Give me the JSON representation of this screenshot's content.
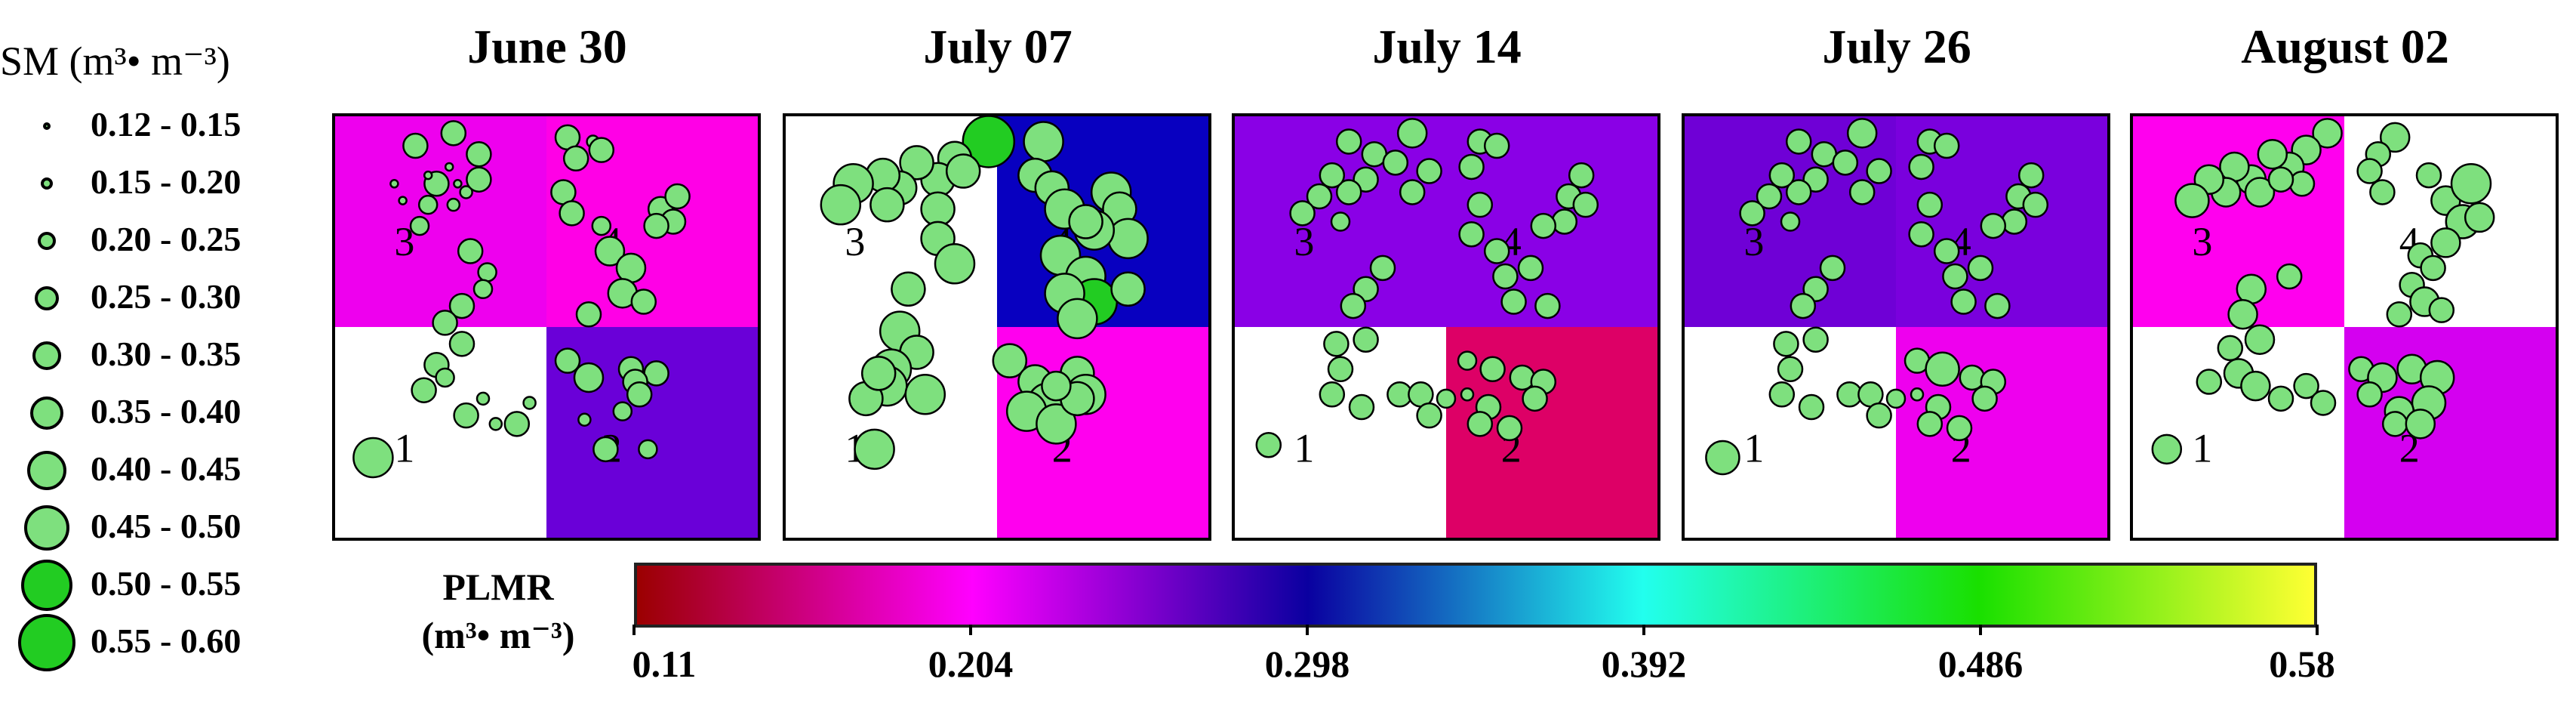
{
  "size_legend": {
    "title": "SM (m³• m⁻³)",
    "items": [
      {
        "range": "0.12 - 0.15"
      },
      {
        "range": "0.15 - 0.20"
      },
      {
        "range": "0.20 - 0.25"
      },
      {
        "range": "0.25 - 0.30"
      },
      {
        "range": "0.30 - 0.35"
      },
      {
        "range": "0.35 - 0.40"
      },
      {
        "range": "0.40 - 0.45"
      },
      {
        "range": "0.45 - 0.50"
      },
      {
        "range": "0.50 - 0.55"
      },
      {
        "range": "0.55 - 0.60"
      }
    ]
  },
  "colorbar": {
    "label_line1": "PLMR",
    "label_line2": "(m³• m⁻³)",
    "min": 0.11,
    "max": 0.58,
    "ticks": [
      "0.11",
      "0.204",
      "0.298",
      "0.392",
      "0.486",
      "0.58"
    ],
    "colors": [
      "#9b0000",
      "#ff00ff",
      "#0a00a0",
      "#22ffee",
      "#19e000",
      "#ffff33"
    ]
  },
  "quadrant_numbers": [
    "1",
    "2",
    "3",
    "4"
  ],
  "panels": [
    {
      "date": "June 30",
      "quadrants": {
        "q1": "#ffffff",
        "q2": "#6a00d8",
        "q3": "#ee00ee",
        "q4": "#ff00e6"
      },
      "points": [
        [
          0.19,
          0.07,
          0.3
        ],
        [
          0.28,
          0.04,
          0.3
        ],
        [
          0.34,
          0.09,
          0.3
        ],
        [
          0.27,
          0.12,
          0.15
        ],
        [
          0.29,
          0.16,
          0.15
        ],
        [
          0.24,
          0.16,
          0.3
        ],
        [
          0.31,
          0.18,
          0.2
        ],
        [
          0.22,
          0.21,
          0.25
        ],
        [
          0.2,
          0.26,
          0.25
        ],
        [
          0.28,
          0.21,
          0.2
        ],
        [
          0.34,
          0.15,
          0.3
        ],
        [
          0.16,
          0.2,
          0.15
        ],
        [
          0.22,
          0.14,
          0.15
        ],
        [
          0.14,
          0.16,
          0.15
        ],
        [
          0.55,
          0.05,
          0.3
        ],
        [
          0.61,
          0.06,
          0.2
        ],
        [
          0.63,
          0.08,
          0.3
        ],
        [
          0.57,
          0.1,
          0.3
        ],
        [
          0.54,
          0.18,
          0.3
        ],
        [
          0.56,
          0.23,
          0.3
        ],
        [
          0.63,
          0.26,
          0.25
        ],
        [
          0.65,
          0.32,
          0.35
        ],
        [
          0.7,
          0.36,
          0.35
        ],
        [
          0.68,
          0.42,
          0.35
        ],
        [
          0.73,
          0.44,
          0.3
        ],
        [
          0.6,
          0.47,
          0.3
        ],
        [
          0.77,
          0.22,
          0.3
        ],
        [
          0.81,
          0.19,
          0.3
        ],
        [
          0.8,
          0.25,
          0.3
        ],
        [
          0.76,
          0.26,
          0.3
        ],
        [
          0.32,
          0.32,
          0.3
        ],
        [
          0.36,
          0.37,
          0.25
        ],
        [
          0.35,
          0.41,
          0.25
        ],
        [
          0.3,
          0.45,
          0.3
        ],
        [
          0.26,
          0.49,
          0.3
        ],
        [
          0.3,
          0.54,
          0.3
        ],
        [
          0.24,
          0.59,
          0.3
        ],
        [
          0.26,
          0.62,
          0.25
        ],
        [
          0.21,
          0.65,
          0.3
        ],
        [
          0.31,
          0.71,
          0.3
        ],
        [
          0.38,
          0.73,
          0.2
        ],
        [
          0.43,
          0.73,
          0.3
        ],
        [
          0.46,
          0.68,
          0.2
        ],
        [
          0.55,
          0.58,
          0.3
        ],
        [
          0.6,
          0.62,
          0.35
        ],
        [
          0.7,
          0.6,
          0.3
        ],
        [
          0.76,
          0.61,
          0.3
        ],
        [
          0.71,
          0.63,
          0.3
        ],
        [
          0.68,
          0.7,
          0.25
        ],
        [
          0.59,
          0.72,
          0.2
        ],
        [
          0.64,
          0.79,
          0.3
        ],
        [
          0.74,
          0.79,
          0.25
        ],
        [
          0.72,
          0.66,
          0.3
        ],
        [
          0.35,
          0.67,
          0.2
        ],
        [
          0.09,
          0.81,
          0.45
        ]
      ]
    },
    {
      "date": "July 07",
      "quadrants": {
        "q1": "#ffffff",
        "q2": "#ff00ee",
        "q3": "#ffffff",
        "q4": "#0800c0"
      },
      "points": [
        [
          0.48,
          0.06,
          0.55
        ],
        [
          0.4,
          0.1,
          0.4
        ],
        [
          0.36,
          0.15,
          0.4
        ],
        [
          0.31,
          0.11,
          0.4
        ],
        [
          0.27,
          0.17,
          0.4
        ],
        [
          0.23,
          0.14,
          0.4
        ],
        [
          0.24,
          0.21,
          0.4
        ],
        [
          0.16,
          0.16,
          0.45
        ],
        [
          0.13,
          0.21,
          0.45
        ],
        [
          0.36,
          0.22,
          0.4
        ],
        [
          0.36,
          0.29,
          0.4
        ],
        [
          0.42,
          0.13,
          0.4
        ],
        [
          0.61,
          0.06,
          0.45
        ],
        [
          0.59,
          0.14,
          0.4
        ],
        [
          0.63,
          0.17,
          0.4
        ],
        [
          0.66,
          0.22,
          0.45
        ],
        [
          0.77,
          0.18,
          0.45
        ],
        [
          0.79,
          0.22,
          0.4
        ],
        [
          0.81,
          0.29,
          0.45
        ],
        [
          0.73,
          0.27,
          0.45
        ],
        [
          0.65,
          0.33,
          0.45
        ],
        [
          0.71,
          0.38,
          0.45
        ],
        [
          0.73,
          0.44,
          0.5
        ],
        [
          0.66,
          0.42,
          0.45
        ],
        [
          0.69,
          0.48,
          0.45
        ],
        [
          0.81,
          0.41,
          0.4
        ],
        [
          0.71,
          0.25,
          0.4
        ],
        [
          0.4,
          0.35,
          0.45
        ],
        [
          0.29,
          0.41,
          0.4
        ],
        [
          0.27,
          0.51,
          0.45
        ],
        [
          0.31,
          0.56,
          0.4
        ],
        [
          0.25,
          0.6,
          0.45
        ],
        [
          0.24,
          0.64,
          0.45
        ],
        [
          0.33,
          0.66,
          0.45
        ],
        [
          0.19,
          0.67,
          0.4
        ],
        [
          0.22,
          0.61,
          0.4
        ],
        [
          0.53,
          0.58,
          0.4
        ],
        [
          0.59,
          0.63,
          0.4
        ],
        [
          0.69,
          0.61,
          0.4
        ],
        [
          0.71,
          0.66,
          0.45
        ],
        [
          0.62,
          0.68,
          0.45
        ],
        [
          0.57,
          0.7,
          0.45
        ],
        [
          0.64,
          0.73,
          0.45
        ],
        [
          0.69,
          0.67,
          0.4
        ],
        [
          0.64,
          0.64,
          0.35
        ],
        [
          0.21,
          0.79,
          0.45
        ]
      ]
    },
    {
      "date": "July 14",
      "quadrants": {
        "q1": "#ffffff",
        "q2": "#dd0066",
        "q3": "#8a00e6",
        "q4": "#8a00e6"
      },
      "points": [
        [
          0.27,
          0.06,
          0.3
        ],
        [
          0.33,
          0.09,
          0.3
        ],
        [
          0.42,
          0.04,
          0.35
        ],
        [
          0.38,
          0.11,
          0.3
        ],
        [
          0.31,
          0.15,
          0.3
        ],
        [
          0.27,
          0.18,
          0.3
        ],
        [
          0.23,
          0.14,
          0.3
        ],
        [
          0.2,
          0.19,
          0.3
        ],
        [
          0.16,
          0.23,
          0.3
        ],
        [
          0.25,
          0.25,
          0.25
        ],
        [
          0.42,
          0.18,
          0.3
        ],
        [
          0.46,
          0.13,
          0.3
        ],
        [
          0.58,
          0.06,
          0.3
        ],
        [
          0.62,
          0.07,
          0.3
        ],
        [
          0.56,
          0.12,
          0.3
        ],
        [
          0.58,
          0.21,
          0.3
        ],
        [
          0.56,
          0.28,
          0.3
        ],
        [
          0.62,
          0.32,
          0.3
        ],
        [
          0.64,
          0.38,
          0.3
        ],
        [
          0.7,
          0.36,
          0.3
        ],
        [
          0.66,
          0.44,
          0.3
        ],
        [
          0.74,
          0.45,
          0.3
        ],
        [
          0.79,
          0.19,
          0.3
        ],
        [
          0.82,
          0.14,
          0.3
        ],
        [
          0.83,
          0.21,
          0.3
        ],
        [
          0.78,
          0.25,
          0.3
        ],
        [
          0.73,
          0.26,
          0.3
        ],
        [
          0.35,
          0.36,
          0.3
        ],
        [
          0.31,
          0.41,
          0.3
        ],
        [
          0.28,
          0.45,
          0.3
        ],
        [
          0.31,
          0.53,
          0.3
        ],
        [
          0.24,
          0.54,
          0.3
        ],
        [
          0.25,
          0.6,
          0.3
        ],
        [
          0.23,
          0.66,
          0.3
        ],
        [
          0.3,
          0.69,
          0.3
        ],
        [
          0.39,
          0.66,
          0.3
        ],
        [
          0.44,
          0.66,
          0.3
        ],
        [
          0.46,
          0.71,
          0.3
        ],
        [
          0.5,
          0.67,
          0.25
        ],
        [
          0.55,
          0.58,
          0.25
        ],
        [
          0.61,
          0.6,
          0.3
        ],
        [
          0.68,
          0.62,
          0.3
        ],
        [
          0.73,
          0.63,
          0.3
        ],
        [
          0.71,
          0.67,
          0.3
        ],
        [
          0.6,
          0.69,
          0.3
        ],
        [
          0.55,
          0.66,
          0.2
        ],
        [
          0.58,
          0.73,
          0.3
        ],
        [
          0.65,
          0.74,
          0.3
        ],
        [
          0.08,
          0.78,
          0.3
        ]
      ]
    },
    {
      "date": "July 26",
      "quadrants": {
        "q1": "#ffffff",
        "q2": "#ee00ee",
        "q3": "#6f00d6",
        "q4": "#7a00dd"
      },
      "points": [
        [
          0.27,
          0.06,
          0.3
        ],
        [
          0.33,
          0.09,
          0.3
        ],
        [
          0.42,
          0.04,
          0.35
        ],
        [
          0.38,
          0.11,
          0.3
        ],
        [
          0.31,
          0.15,
          0.3
        ],
        [
          0.27,
          0.18,
          0.3
        ],
        [
          0.23,
          0.14,
          0.3
        ],
        [
          0.2,
          0.19,
          0.3
        ],
        [
          0.16,
          0.23,
          0.3
        ],
        [
          0.25,
          0.25,
          0.25
        ],
        [
          0.42,
          0.18,
          0.3
        ],
        [
          0.46,
          0.13,
          0.3
        ],
        [
          0.58,
          0.06,
          0.3
        ],
        [
          0.62,
          0.07,
          0.3
        ],
        [
          0.56,
          0.12,
          0.3
        ],
        [
          0.58,
          0.21,
          0.3
        ],
        [
          0.56,
          0.28,
          0.3
        ],
        [
          0.62,
          0.32,
          0.3
        ],
        [
          0.64,
          0.38,
          0.3
        ],
        [
          0.7,
          0.36,
          0.3
        ],
        [
          0.66,
          0.44,
          0.3
        ],
        [
          0.74,
          0.45,
          0.3
        ],
        [
          0.79,
          0.19,
          0.3
        ],
        [
          0.82,
          0.14,
          0.3
        ],
        [
          0.83,
          0.21,
          0.3
        ],
        [
          0.78,
          0.25,
          0.3
        ],
        [
          0.73,
          0.26,
          0.3
        ],
        [
          0.35,
          0.36,
          0.3
        ],
        [
          0.31,
          0.41,
          0.3
        ],
        [
          0.28,
          0.45,
          0.3
        ],
        [
          0.31,
          0.53,
          0.3
        ],
        [
          0.24,
          0.54,
          0.3
        ],
        [
          0.25,
          0.6,
          0.3
        ],
        [
          0.23,
          0.66,
          0.3
        ],
        [
          0.3,
          0.69,
          0.3
        ],
        [
          0.39,
          0.66,
          0.3
        ],
        [
          0.44,
          0.66,
          0.3
        ],
        [
          0.46,
          0.71,
          0.3
        ],
        [
          0.5,
          0.67,
          0.25
        ],
        [
          0.55,
          0.58,
          0.3
        ],
        [
          0.61,
          0.6,
          0.4
        ],
        [
          0.68,
          0.62,
          0.3
        ],
        [
          0.73,
          0.63,
          0.3
        ],
        [
          0.71,
          0.67,
          0.3
        ],
        [
          0.6,
          0.69,
          0.3
        ],
        [
          0.55,
          0.66,
          0.2
        ],
        [
          0.58,
          0.73,
          0.3
        ],
        [
          0.65,
          0.74,
          0.3
        ],
        [
          0.09,
          0.81,
          0.4
        ]
      ]
    },
    {
      "date": "August 02",
      "quadrants": {
        "q1": "#ffffff",
        "q2": "#d400f0",
        "q3": "#ff00ee",
        "q4": "#ffffff"
      },
      "points": [
        [
          0.46,
          0.04,
          0.35
        ],
        [
          0.41,
          0.08,
          0.35
        ],
        [
          0.37,
          0.12,
          0.35
        ],
        [
          0.33,
          0.09,
          0.35
        ],
        [
          0.28,
          0.15,
          0.35
        ],
        [
          0.24,
          0.12,
          0.35
        ],
        [
          0.22,
          0.18,
          0.35
        ],
        [
          0.18,
          0.15,
          0.35
        ],
        [
          0.14,
          0.2,
          0.4
        ],
        [
          0.3,
          0.18,
          0.35
        ],
        [
          0.4,
          0.16,
          0.3
        ],
        [
          0.35,
          0.15,
          0.3
        ],
        [
          0.62,
          0.05,
          0.35
        ],
        [
          0.58,
          0.09,
          0.3
        ],
        [
          0.56,
          0.13,
          0.3
        ],
        [
          0.59,
          0.18,
          0.3
        ],
        [
          0.7,
          0.14,
          0.3
        ],
        [
          0.74,
          0.2,
          0.35
        ],
        [
          0.8,
          0.16,
          0.45
        ],
        [
          0.78,
          0.25,
          0.4
        ],
        [
          0.74,
          0.3,
          0.35
        ],
        [
          0.68,
          0.33,
          0.3
        ],
        [
          0.66,
          0.4,
          0.3
        ],
        [
          0.69,
          0.44,
          0.35
        ],
        [
          0.63,
          0.47,
          0.3
        ],
        [
          0.73,
          0.46,
          0.3
        ],
        [
          0.82,
          0.24,
          0.35
        ],
        [
          0.71,
          0.36,
          0.3
        ],
        [
          0.37,
          0.38,
          0.3
        ],
        [
          0.28,
          0.41,
          0.35
        ],
        [
          0.26,
          0.47,
          0.35
        ],
        [
          0.3,
          0.53,
          0.35
        ],
        [
          0.23,
          0.55,
          0.3
        ],
        [
          0.25,
          0.61,
          0.35
        ],
        [
          0.29,
          0.64,
          0.35
        ],
        [
          0.18,
          0.63,
          0.3
        ],
        [
          0.35,
          0.67,
          0.3
        ],
        [
          0.41,
          0.64,
          0.3
        ],
        [
          0.45,
          0.68,
          0.3
        ],
        [
          0.54,
          0.6,
          0.3
        ],
        [
          0.59,
          0.62,
          0.35
        ],
        [
          0.66,
          0.6,
          0.35
        ],
        [
          0.72,
          0.62,
          0.4
        ],
        [
          0.7,
          0.68,
          0.4
        ],
        [
          0.63,
          0.7,
          0.35
        ],
        [
          0.56,
          0.66,
          0.3
        ],
        [
          0.62,
          0.73,
          0.3
        ],
        [
          0.68,
          0.73,
          0.35
        ],
        [
          0.08,
          0.79,
          0.35
        ]
      ]
    }
  ]
}
